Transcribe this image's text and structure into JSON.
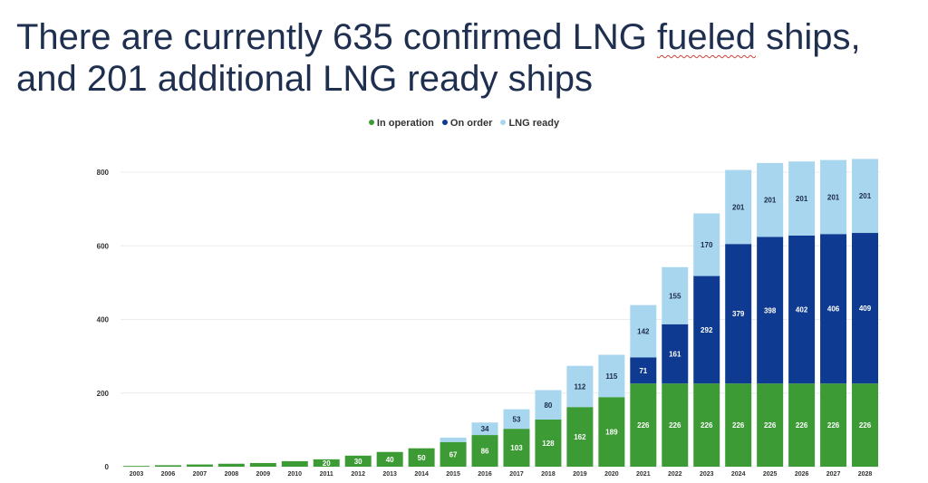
{
  "title": {
    "line1_a": "There are currently 635 confirmed LNG ",
    "line1_b": "fueled",
    "line1_c": " ships,",
    "line2": "and 201 additional LNG ready ships"
  },
  "colors": {
    "title": "#1f2f4f",
    "in_operation": "#3d9b35",
    "on_order": "#0e3b91",
    "lng_ready": "#a8d6ef"
  },
  "chart_data": {
    "type": "bar",
    "stacked": true,
    "categories": [
      "2003",
      "2006",
      "2007",
      "2008",
      "2009",
      "2010",
      "2011",
      "2012",
      "2013",
      "2014",
      "2015",
      "2016",
      "2017",
      "2018",
      "2019",
      "2020",
      "2021",
      "2022",
      "2023",
      "2024",
      "2025",
      "2026",
      "2027",
      "2028"
    ],
    "series": [
      {
        "name": "In operation",
        "color": "#3d9b35",
        "values": [
          2,
          4,
          6,
          8,
          10,
          15,
          20,
          30,
          40,
          50,
          67,
          86,
          103,
          128,
          162,
          189,
          226,
          226,
          226,
          226,
          226,
          226,
          226,
          226
        ]
      },
      {
        "name": "On order",
        "color": "#0e3b91",
        "values": [
          0,
          0,
          0,
          0,
          0,
          0,
          0,
          0,
          0,
          0,
          0,
          0,
          0,
          0,
          0,
          0,
          71,
          161,
          292,
          379,
          398,
          402,
          406,
          409
        ]
      },
      {
        "name": "LNG ready",
        "color": "#a8d6ef",
        "values": [
          0,
          0,
          0,
          0,
          0,
          0,
          0,
          0,
          0,
          0,
          12,
          34,
          53,
          80,
          112,
          115,
          142,
          155,
          170,
          201,
          201,
          201,
          201,
          201
        ]
      }
    ],
    "data_labels": [
      [
        "",
        "",
        "",
        "",
        "",
        "",
        "20",
        "30",
        "40",
        "50",
        "67",
        "86",
        "103",
        "128",
        "162",
        "189",
        "226",
        "226",
        "226",
        "226",
        "226",
        "226",
        "226",
        "226"
      ],
      [
        "",
        "",
        "",
        "",
        "",
        "",
        "",
        "",
        "",
        "",
        "",
        "",
        "",
        "",
        "",
        "",
        "71",
        "161",
        "292",
        "379",
        "398",
        "402",
        "406",
        "409"
      ],
      [
        "",
        "",
        "",
        "",
        "",
        "",
        "",
        "",
        "",
        "",
        "",
        "34",
        "53",
        "80",
        "112",
        "115",
        "142",
        "155",
        "170",
        "201",
        "201",
        "201",
        "201",
        "201"
      ]
    ],
    "y_ticks": [
      0,
      200,
      400,
      600,
      800
    ],
    "ylim": [
      0,
      800
    ],
    "grid": true,
    "legend": "top-center",
    "title": "",
    "xlabel": "",
    "ylabel": ""
  }
}
